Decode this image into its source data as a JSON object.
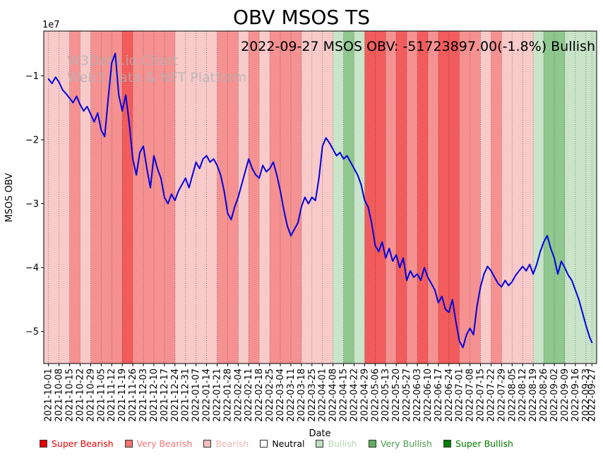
{
  "figure": {
    "title": "OBV MSOS TS",
    "annotation": "2022-09-27 MSOS OBV: -51723897.00(-1.8%) Bullish",
    "watermark": {
      "line1": "W3Data.io Chart",
      "line2": "Web3 Data & NFT Platform"
    }
  },
  "axes": {
    "x_label": "Date",
    "y_label": "MSOS OBV",
    "y_offset_text": "1e7",
    "y_ticks": [
      "−1",
      "−2",
      "−3",
      "−4",
      "−5"
    ]
  },
  "chart_data": {
    "type": "line",
    "title": "OBV MSOS TS",
    "xlabel": "Date",
    "ylabel": "MSOS OBV",
    "series_name": "MSOS OBV",
    "line_color": "#0000dd",
    "y_unit_multiplier": 10000000,
    "ylim_1e7": [
      -5.5,
      -0.3
    ],
    "gridlines": "vertical-dotted",
    "legend_position": "bottom",
    "x_start_date": "2021-10-01",
    "x_end_date": "2022-09-27",
    "samples_per_week": 3,
    "x_tick_labels": [
      "2021-10-01",
      "2021-10-08",
      "2021-10-15",
      "2021-10-22",
      "2021-10-29",
      "2021-11-05",
      "2021-11-12",
      "2021-11-19",
      "2021-11-26",
      "2021-12-03",
      "2021-12-10",
      "2021-12-17",
      "2021-12-24",
      "2021-12-31",
      "2022-01-07",
      "2022-01-14",
      "2022-01-21",
      "2022-01-28",
      "2022-02-04",
      "2022-02-11",
      "2022-02-18",
      "2022-02-25",
      "2022-03-04",
      "2022-03-11",
      "2022-03-18",
      "2022-03-25",
      "2022-04-01",
      "2022-04-08",
      "2022-04-15",
      "2022-04-22",
      "2022-04-29",
      "2022-05-06",
      "2022-05-13",
      "2022-05-20",
      "2022-05-27",
      "2022-06-03",
      "2022-06-10",
      "2022-06-17",
      "2022-06-24",
      "2022-07-01",
      "2022-07-08",
      "2022-07-15",
      "2022-07-22",
      "2022-07-29",
      "2022-08-05",
      "2022-08-12",
      "2022-08-19",
      "2022-08-26",
      "2022-09-02",
      "2022-09-09",
      "2022-09-16",
      "2022-09-23",
      "2022-09-27"
    ],
    "values_1e7": [
      -1.05,
      -1.12,
      -1.02,
      -1.1,
      -1.22,
      -1.28,
      -1.35,
      -1.42,
      -1.32,
      -1.45,
      -1.55,
      -1.48,
      -1.6,
      -1.72,
      -1.58,
      -1.85,
      -1.95,
      -1.35,
      -0.8,
      -0.65,
      -1.3,
      -1.55,
      -1.3,
      -1.75,
      -2.3,
      -2.55,
      -2.2,
      -2.1,
      -2.45,
      -2.75,
      -2.25,
      -2.45,
      -2.6,
      -2.9,
      -3.0,
      -2.85,
      -2.95,
      -2.8,
      -2.7,
      -2.6,
      -2.75,
      -2.55,
      -2.35,
      -2.45,
      -2.3,
      -2.25,
      -2.35,
      -2.3,
      -2.4,
      -2.55,
      -2.8,
      -3.15,
      -3.25,
      -3.05,
      -2.9,
      -2.7,
      -2.5,
      -2.3,
      -2.45,
      -2.55,
      -2.6,
      -2.4,
      -2.5,
      -2.45,
      -2.35,
      -2.55,
      -2.8,
      -3.1,
      -3.35,
      -3.5,
      -3.4,
      -3.3,
      -3.05,
      -2.9,
      -3.0,
      -2.9,
      -2.95,
      -2.6,
      -2.1,
      -1.97,
      -2.05,
      -2.15,
      -2.25,
      -2.2,
      -2.3,
      -2.25,
      -2.35,
      -2.45,
      -2.55,
      -2.7,
      -2.95,
      -3.05,
      -3.3,
      -3.65,
      -3.75,
      -3.6,
      -3.85,
      -3.7,
      -3.9,
      -3.8,
      -4.0,
      -3.85,
      -4.2,
      -4.05,
      -4.15,
      -4.1,
      -4.2,
      -4.0,
      -4.15,
      -4.25,
      -4.35,
      -4.55,
      -4.45,
      -4.65,
      -4.7,
      -4.5,
      -4.85,
      -5.15,
      -5.25,
      -5.05,
      -4.95,
      -5.05,
      -4.6,
      -4.3,
      -4.1,
      -3.98,
      -4.05,
      -4.15,
      -4.25,
      -4.3,
      -4.2,
      -4.28,
      -4.22,
      -4.12,
      -4.05,
      -3.98,
      -4.05,
      -3.95,
      -4.1,
      -3.95,
      -3.75,
      -3.6,
      -3.5,
      -3.7,
      -3.85,
      -4.1,
      -3.9,
      -4.0,
      -4.12,
      -4.2,
      -4.35,
      -4.5,
      -4.7,
      -4.9,
      -5.0,
      -5.1,
      -5.17
    ],
    "band_sentiments": [
      "bearish",
      "bearish",
      "very_bearish",
      "bearish",
      "very_bearish",
      "very_bearish",
      "very_bearish",
      "super_bearish",
      "very_bearish",
      "very_bearish",
      "very_bearish",
      "very_bearish",
      "bearish",
      "bearish",
      "bearish",
      "bearish",
      "very_bearish",
      "very_bearish",
      "bearish",
      "very_bearish",
      "bearish",
      "very_bearish",
      "very_bearish",
      "very_bearish",
      "bearish",
      "bearish",
      "bearish",
      "bullish",
      "very_bullish",
      "bullish",
      "super_bearish",
      "super_bearish",
      "very_bearish",
      "super_bearish",
      "very_bearish",
      "super_bearish",
      "very_bearish",
      "super_bearish",
      "super_bearish",
      "very_bearish",
      "very_bearish",
      "bearish",
      "very_bearish",
      "bearish",
      "bearish",
      "bearish",
      "bullish",
      "very_bullish",
      "very_bullish",
      "bullish",
      "bullish",
      "bullish"
    ],
    "band_palette": {
      "super_bearish": "#f25c5c",
      "very_bearish": "#f59191",
      "bearish": "#f9caca",
      "neutral": "#ffffff",
      "bullish": "#c9e4c9",
      "very_bullish": "#8fc78f",
      "super_bullish": "#2e8b2e"
    },
    "last_point": {
      "date": "2022-09-27",
      "obv": -51723897.0,
      "change_pct": -1.8,
      "signal": "Bullish"
    }
  },
  "legend": {
    "items": [
      {
        "label": "Super Bearish",
        "color": "#e60000",
        "label_color": "#e60000"
      },
      {
        "label": "Very Bearish",
        "color": "#f57373",
        "label_color": "#f57373"
      },
      {
        "label": "Bearish",
        "color": "#f6bcbc",
        "label_color": "#f0b4b4"
      },
      {
        "label": "Neutral",
        "color": "#ffffff",
        "label_color": "#000000"
      },
      {
        "label": "Bullish",
        "color": "#bedebe",
        "label_color": "#b5d8b5"
      },
      {
        "label": "Very Bullish",
        "color": "#5fae5f",
        "label_color": "#4d9e4d"
      },
      {
        "label": "Super Bullish",
        "color": "#008000",
        "label_color": "#008000"
      }
    ]
  }
}
